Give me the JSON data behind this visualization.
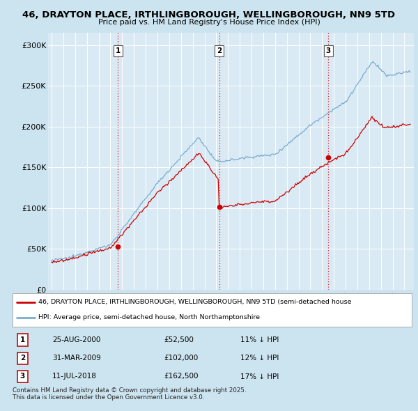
{
  "title": "46, DRAYTON PLACE, IRTHLINGBOROUGH, WELLINGBOROUGH, NN9 5TD",
  "subtitle": "Price paid vs. HM Land Registry's House Price Index (HPI)",
  "background_color": "#cce4f0",
  "plot_bg_color": "#daeaf5",
  "ylabel_ticks": [
    "£0",
    "£50K",
    "£100K",
    "£150K",
    "£200K",
    "£250K",
    "£300K"
  ],
  "ytick_values": [
    0,
    50000,
    100000,
    150000,
    200000,
    250000,
    300000
  ],
  "ylim": [
    0,
    315000
  ],
  "xlim_start": 1994.7,
  "xlim_end": 2025.8,
  "grid_color": "#ffffff",
  "transactions": [
    {
      "date_year": 2000.65,
      "price": 52500,
      "label": "1"
    },
    {
      "date_year": 2009.25,
      "price": 102000,
      "label": "2"
    },
    {
      "date_year": 2018.53,
      "price": 162500,
      "label": "3"
    }
  ],
  "vline_color": "#dd2222",
  "legend_items": [
    {
      "label": "46, DRAYTON PLACE, IRTHLINGBOROUGH, WELLINGBOROUGH, NN9 5TD (semi-detached house",
      "color": "#cc0000"
    },
    {
      "label": "HPI: Average price, semi-detached house, North Northamptonshire",
      "color": "#6699cc"
    }
  ],
  "table_rows": [
    {
      "num": "1",
      "date": "25-AUG-2000",
      "price": "£52,500",
      "hpi": "11% ↓ HPI"
    },
    {
      "num": "2",
      "date": "31-MAR-2009",
      "price": "£102,000",
      "hpi": "12% ↓ HPI"
    },
    {
      "num": "3",
      "date": "11-JUL-2018",
      "price": "£162,500",
      "hpi": "17% ↓ HPI"
    }
  ],
  "footer": "Contains HM Land Registry data © Crown copyright and database right 2025.\nThis data is licensed under the Open Government Licence v3.0.",
  "red_line_color": "#cc0000",
  "blue_line_color": "#7aacce"
}
